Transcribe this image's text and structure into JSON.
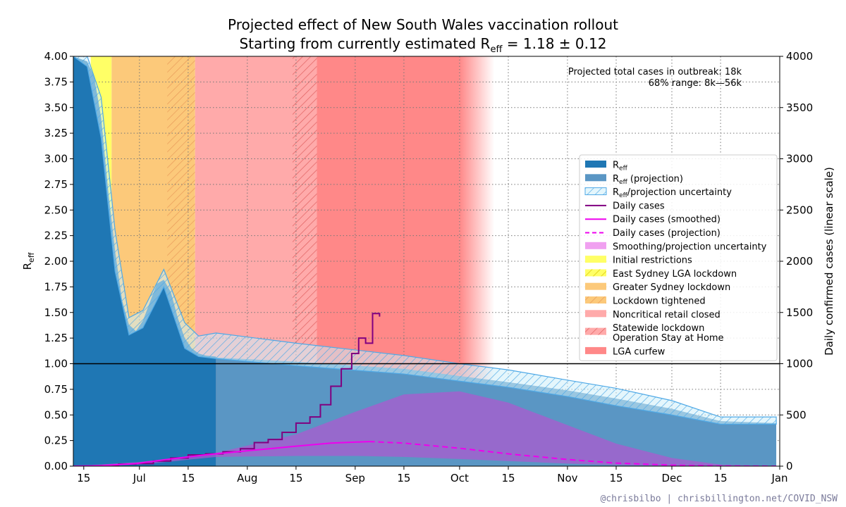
{
  "title_line1": "Projected effect of New South Wales vaccination rollout",
  "title_line2": "Starting from currently estimated R",
  "title_line2_sub": "eff",
  "title_line2_rest": " = 1.18 ± 0.12",
  "credit": "@chrisbilbo | chrisbillington.net/COVID_NSW",
  "annotation": {
    "line1": "Projected total cases in outbreak:  18k",
    "line2": "68% range:  8k—56k"
  },
  "colors": {
    "reff": "#1f77b4",
    "reff_projection": "#5a96c4",
    "uncertainty_edge": "#4fa9e6",
    "uncertainty_fill": "#cdeefa",
    "daily_cases": "#800080",
    "smoothed": "#ee00ee",
    "smoothing_band": "#b266cc",
    "initial": "#ffff66",
    "greater_sydney": "#fcc97a",
    "noncritical": "#ffaaaa",
    "lga_curfew": "#ff8888"
  },
  "chart_data": {
    "type": "area",
    "x_axis": {
      "start": "2021-06-12",
      "end": "2022-01-01",
      "tick_labels": [
        "15",
        "Jul",
        "15",
        "Aug",
        "15",
        "Sep",
        "15",
        "Oct",
        "15",
        "Nov",
        "15",
        "Dec",
        "15",
        "Jan"
      ],
      "tick_dates": [
        "2021-06-15",
        "2021-07-01",
        "2021-07-15",
        "2021-08-01",
        "2021-08-15",
        "2021-09-01",
        "2021-09-15",
        "2021-10-01",
        "2021-10-15",
        "2021-11-01",
        "2021-11-15",
        "2021-12-01",
        "2021-12-15",
        "2022-01-01"
      ]
    },
    "y_left": {
      "label": "R",
      "label_sub": "eff",
      "ylim": [
        0,
        4
      ],
      "tick_labels": [
        "0.00",
        "0.25",
        "0.50",
        "0.75",
        "1.00",
        "1.25",
        "1.50",
        "1.75",
        "2.00",
        "2.25",
        "2.50",
        "2.75",
        "3.00",
        "3.25",
        "3.50",
        "3.75",
        "4.00"
      ]
    },
    "y_right": {
      "label": "Daily confirmed cases (linear scale)",
      "ylim": [
        0,
        4000
      ],
      "tick_labels": [
        "0",
        "500",
        "1000",
        "1500",
        "2000",
        "2500",
        "3000",
        "3500",
        "4000"
      ]
    },
    "grid": true,
    "reference_line": 1.0,
    "restriction_periods": [
      {
        "name": "Initial restrictions",
        "start": "2021-06-17",
        "end": "2021-06-23",
        "color": "#ffff66"
      },
      {
        "name": "Greater Sydney lockdown",
        "start": "2021-06-23",
        "end": "2021-07-17",
        "color": "#fcc97a",
        "hatched": [
          [
            "2021-07-09",
            "2021-07-17"
          ]
        ]
      },
      {
        "name": "Noncritical retail closed",
        "start": "2021-07-17",
        "end": "2021-08-21",
        "color": "#ffaaaa",
        "hatched": [
          [
            "2021-08-14",
            "2021-08-21"
          ]
        ]
      },
      {
        "name": "LGA curfew",
        "start": "2021-08-21",
        "end": "2021-10-01",
        "color": "#ff8888",
        "fade_end": "2021-10-11"
      }
    ],
    "reff_estimate": {
      "dates": [
        "2021-06-12",
        "2021-06-16",
        "2021-06-18",
        "2021-06-20",
        "2021-06-22",
        "2021-06-24",
        "2021-06-26",
        "2021-06-28",
        "2021-06-30",
        "2021-07-02",
        "2021-07-04",
        "2021-07-06",
        "2021-07-08",
        "2021-07-10",
        "2021-07-12",
        "2021-07-14",
        "2021-07-16",
        "2021-07-18",
        "2021-07-20",
        "2021-07-23"
      ],
      "values": [
        4.0,
        3.95,
        3.8,
        3.4,
        2.7,
        2.1,
        1.62,
        1.38,
        1.32,
        1.42,
        1.6,
        1.78,
        1.82,
        1.7,
        1.45,
        1.25,
        1.15,
        1.1,
        1.08,
        1.07
      ]
    },
    "reff_projection": {
      "dates": [
        "2021-07-23",
        "2021-08-15",
        "2021-09-15",
        "2021-10-01",
        "2021-10-15",
        "2021-11-01",
        "2021-11-15",
        "2021-12-01",
        "2021-12-15",
        "2021-12-31"
      ],
      "values": [
        1.06,
        1.02,
        0.95,
        0.88,
        0.82,
        0.74,
        0.66,
        0.56,
        0.44,
        0.42
      ]
    },
    "reff_uncertainty": {
      "dates": [
        "2021-06-12",
        "2021-06-16",
        "2021-06-20",
        "2021-06-24",
        "2021-06-28",
        "2021-07-02",
        "2021-07-08",
        "2021-07-14",
        "2021-07-18",
        "2021-07-23",
        "2021-08-15",
        "2021-09-15",
        "2021-10-01",
        "2021-10-15",
        "2021-11-01",
        "2021-11-15",
        "2021-12-01",
        "2021-12-15",
        "2021-12-31"
      ],
      "upper": [
        4.0,
        4.0,
        3.6,
        2.3,
        1.45,
        1.52,
        1.92,
        1.4,
        1.27,
        1.3,
        1.2,
        1.08,
        1.0,
        0.94,
        0.84,
        0.76,
        0.64,
        0.48,
        0.48
      ],
      "lower": [
        4.0,
        3.9,
        3.2,
        1.9,
        1.28,
        1.35,
        1.75,
        1.15,
        1.07,
        1.05,
        0.98,
        0.9,
        0.83,
        0.77,
        0.68,
        0.59,
        0.5,
        0.41,
        0.41
      ]
    },
    "daily_cases": {
      "dates": [
        "2021-06-12",
        "2021-06-20",
        "2021-06-25",
        "2021-06-30",
        "2021-07-05",
        "2021-07-10",
        "2021-07-15",
        "2021-07-20",
        "2021-07-25",
        "2021-07-30",
        "2021-08-03",
        "2021-08-07",
        "2021-08-11",
        "2021-08-15",
        "2021-08-19",
        "2021-08-22",
        "2021-08-25",
        "2021-08-28",
        "2021-08-31",
        "2021-09-02",
        "2021-09-04",
        "2021-09-06",
        "2021-09-08"
      ],
      "values": [
        0,
        5,
        20,
        25,
        50,
        80,
        110,
        120,
        140,
        170,
        230,
        260,
        330,
        420,
        480,
        600,
        780,
        950,
        1100,
        1250,
        1200,
        1490,
        1460
      ]
    },
    "daily_cases_smoothed": {
      "dates": [
        "2021-06-12",
        "2021-06-20",
        "2021-06-30",
        "2021-07-10",
        "2021-07-20",
        "2021-08-01",
        "2021-08-15",
        "2021-08-25",
        "2021-09-05"
      ],
      "values": [
        0,
        5,
        25,
        70,
        110,
        150,
        195,
        225,
        240
      ]
    },
    "daily_cases_projection": {
      "dates": [
        "2021-09-05",
        "2021-09-15",
        "2021-10-01",
        "2021-10-15",
        "2021-11-01",
        "2021-11-15",
        "2021-12-01",
        "2021-12-15",
        "2021-12-31"
      ],
      "values": [
        240,
        225,
        175,
        120,
        65,
        30,
        10,
        2,
        0
      ]
    },
    "smoothing_uncertainty": {
      "dates": [
        "2021-06-12",
        "2021-07-01",
        "2021-07-23",
        "2021-08-15",
        "2021-09-01",
        "2021-09-15",
        "2021-10-01",
        "2021-10-15",
        "2021-11-01",
        "2021-11-15",
        "2021-12-01",
        "2021-12-15",
        "2021-12-31"
      ],
      "upper": [
        0,
        40,
        130,
        310,
        530,
        700,
        730,
        620,
        400,
        220,
        80,
        15,
        0
      ],
      "lower": [
        0,
        15,
        90,
        100,
        100,
        90,
        70,
        50,
        25,
        10,
        3,
        0,
        0
      ]
    },
    "legend": {
      "location": "center-right",
      "entries": [
        {
          "label": "R",
          "sub": "eff",
          "rest": "",
          "style": "patch-reff"
        },
        {
          "label": "R",
          "sub": "eff",
          "rest": " (projection)",
          "style": "patch-proj"
        },
        {
          "label": "R",
          "sub": "eff",
          "rest": "/projection uncertainty",
          "style": "patch-unc"
        },
        {
          "label": "Daily cases",
          "style": "line-cases"
        },
        {
          "label": "Daily cases (smoothed)",
          "style": "line-smooth"
        },
        {
          "label": "Daily cases (projection)",
          "style": "line-dashed"
        },
        {
          "label": "Smoothing/projection uncertainty",
          "style": "patch-smoothunc"
        },
        {
          "label": "Initial restrictions",
          "style": "patch-initial"
        },
        {
          "label": "East Sydney LGA lockdown",
          "style": "patch-initial-hatch"
        },
        {
          "label": "Greater Sydney lockdown",
          "style": "patch-gs"
        },
        {
          "label": "Lockdown tightened",
          "style": "patch-gs-hatch"
        },
        {
          "label": "Noncritical retail closed",
          "style": "patch-retail"
        },
        {
          "label": "Statewide lockdown",
          "label2": "Operation Stay at Home",
          "style": "patch-retail-hatch"
        },
        {
          "label": "LGA curfew",
          "style": "patch-curfew"
        }
      ]
    }
  }
}
